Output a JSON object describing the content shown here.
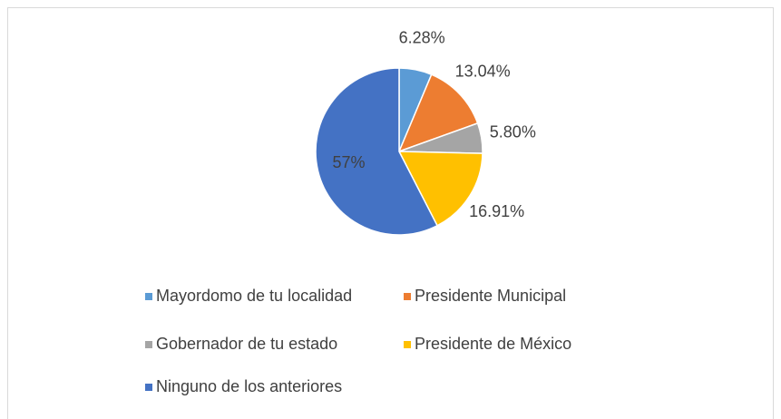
{
  "chart_data": {
    "type": "pie",
    "categories": [
      "Mayordomo de tu localidad",
      "Presidente Municipal",
      "Gobernador de tu estado",
      "Presidente de México",
      "Ninguno de los anteriores"
    ],
    "values": [
      6.28,
      13.04,
      5.8,
      16.91,
      57
    ],
    "value_labels": [
      "6.28%",
      "13.04%",
      "5.80%",
      "16.91%",
      "57%"
    ],
    "colors": [
      "#5b9bd5",
      "#ed7d31",
      "#a5a5a5",
      "#ffc000",
      "#4472c4"
    ],
    "legend": "bottom"
  }
}
